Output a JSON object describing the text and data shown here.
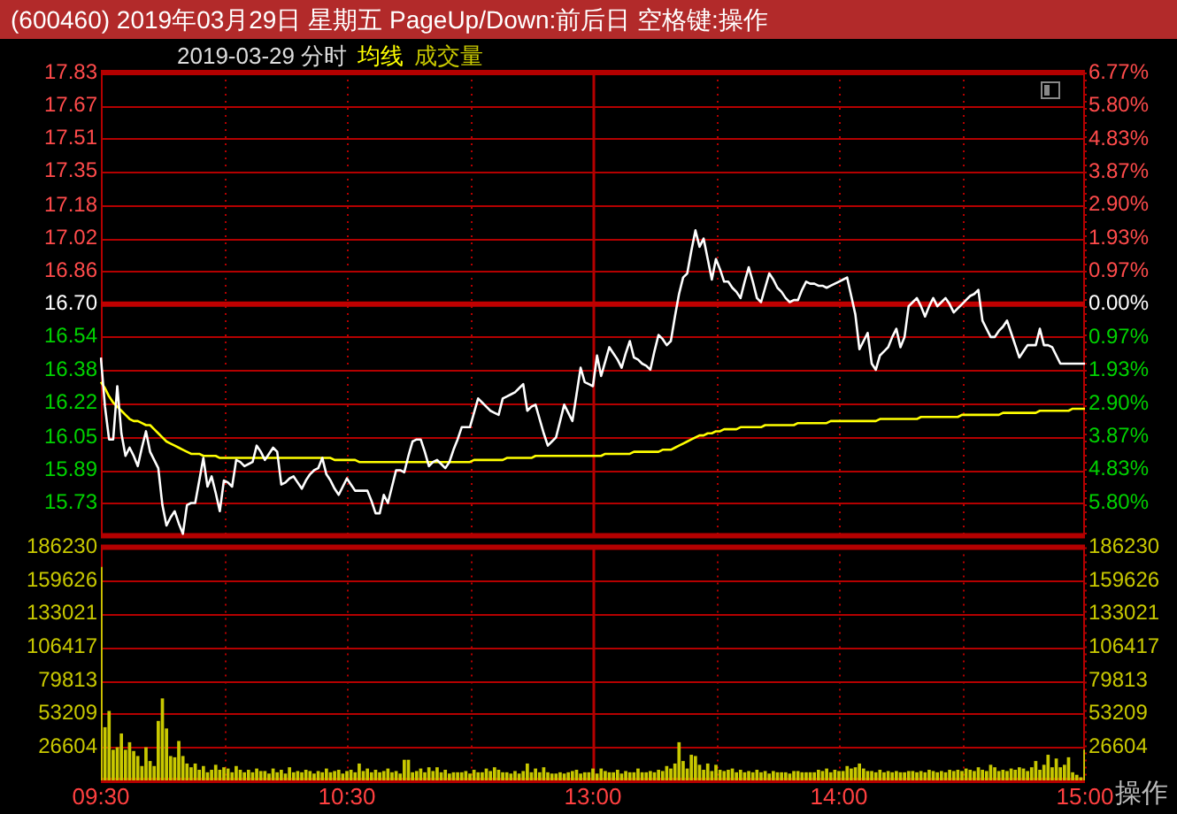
{
  "chart_data": [
    {
      "type": "line",
      "title": "(600460) 2019年03月29日 星期五 PageUp/Down:前后日 空格键:操作",
      "subtitle": "2019-03-29 分时",
      "grid": true,
      "legend": "top left",
      "marker": "none",
      "tick_labels": "y",
      "categories": [
        null,
        null,
        null,
        null,
        null,
        null,
        null,
        null,
        null,
        null,
        null,
        null,
        null,
        null,
        null,
        null,
        null,
        null,
        null,
        null,
        null,
        null,
        null,
        null,
        null,
        null,
        null,
        null,
        null,
        null,
        null,
        null,
        null,
        null,
        null,
        null,
        null,
        null,
        null,
        null,
        null,
        null,
        null,
        null,
        null,
        null,
        null,
        null,
        null,
        null,
        null,
        null,
        null,
        null,
        null,
        null,
        null,
        null,
        null,
        null,
        null,
        null,
        null,
        null,
        null,
        null,
        null,
        null,
        null,
        null,
        null,
        null,
        null,
        null,
        null,
        null,
        null,
        null,
        null,
        null,
        null,
        null,
        null,
        null,
        null,
        null,
        null,
        null,
        null,
        null,
        null,
        null,
        null,
        null,
        null,
        null,
        null,
        null,
        null,
        null,
        null,
        null,
        null,
        null,
        null,
        null,
        null,
        null,
        null,
        null,
        null,
        null,
        null,
        null,
        null,
        null,
        null,
        null,
        null,
        null,
        null,
        null,
        null,
        null,
        null,
        null,
        null,
        null,
        null,
        null,
        null,
        null,
        null,
        null,
        null,
        null,
        null,
        null,
        null,
        null,
        null,
        null,
        null,
        null,
        null,
        null,
        null,
        null,
        null,
        null,
        null,
        null,
        null,
        null,
        null,
        null,
        null,
        null,
        null,
        null,
        null,
        null,
        null,
        null,
        null,
        null,
        null,
        null,
        null,
        null,
        null,
        null,
        null,
        null,
        null,
        null,
        null,
        null,
        null,
        null,
        null,
        null,
        null,
        null,
        null,
        null,
        null,
        null,
        null,
        null,
        null,
        null,
        null,
        null,
        null,
        null,
        null,
        null,
        null,
        null,
        null,
        null,
        null,
        null,
        null,
        null,
        null,
        null,
        null,
        null,
        null,
        null,
        null,
        null,
        null,
        null,
        null,
        null,
        null,
        null,
        null,
        null,
        null,
        null,
        null,
        null,
        null,
        null,
        null,
        null,
        null,
        null,
        null,
        null,
        null,
        null,
        null,
        null,
        null,
        null,
        null
      ],
      "ylim": [
        15.57,
        17.83
      ],
      "yticks": [
        17.83,
        17.67,
        17.51,
        17.35,
        17.18,
        17.02,
        16.86,
        {
          "value": 16.7,
          "label": "16.70"
        },
        16.54,
        16.38,
        16.22,
        16.05,
        15.89,
        15.73
      ],
      "y2lim": [
        -6.77,
        6.77
      ],
      "y2ticks": [
        {
          "value": 6.77,
          "label": "6.77%"
        },
        {
          "value": 5.8,
          "label": "5.80%"
        },
        {
          "value": 4.83,
          "label": "4.83%"
        },
        {
          "value": 3.87,
          "label": "3.87%"
        },
        {
          "value": 2.9,
          "label": "2.90%"
        },
        {
          "value": 1.93,
          "label": "1.93%"
        },
        {
          "value": 0.97,
          "label": "0.97%"
        },
        {
          "value": 0,
          "label": "0.00%"
        },
        {
          "value": -0.97,
          "label": "0.97%"
        },
        {
          "value": -1.93,
          "label": "1.93%"
        },
        {
          "value": -2.9,
          "label": "2.90%"
        },
        {
          "value": -3.87,
          "label": "3.87%"
        },
        {
          "value": -4.83,
          "label": "4.83%"
        },
        {
          "value": -5.8,
          "label": "5.80%"
        }
      ],
      "ref_lines": [
        {
          "axis": "y",
          "value": 16.7,
          "color": "#c00000"
        }
      ],
      "series": [
        {
          "color": "#ffffff",
          "values": [
            16.44,
            16.2,
            16.04,
            16.04,
            16.3,
            16.07,
            15.96,
            16.0,
            15.96,
            15.91,
            16.0,
            16.08,
            15.98,
            15.94,
            15.9,
            15.72,
            15.62,
            15.66,
            15.69,
            15.63,
            15.58,
            15.72,
            15.73,
            15.73,
            15.84,
            15.95,
            15.81,
            15.86,
            15.78,
            15.69,
            15.84,
            15.83,
            15.81,
            15.94,
            15.93,
            15.91,
            15.92,
            15.93,
            16.01,
            15.98,
            15.94,
            15.97,
            16.0,
            15.98,
            15.82,
            15.83,
            15.85,
            15.86,
            15.83,
            15.8,
            15.84,
            15.87,
            15.89,
            15.9,
            15.95,
            15.87,
            15.84,
            15.8,
            15.77,
            15.81,
            15.85,
            15.82,
            15.79,
            15.79,
            15.79,
            15.79,
            15.74,
            15.68,
            15.68,
            15.77,
            15.73,
            15.81,
            15.89,
            15.89,
            15.88,
            15.96,
            16.03,
            16.04,
            16.04,
            15.98,
            15.91,
            15.93,
            15.94,
            15.92,
            15.9,
            15.93,
            15.99,
            16.04,
            16.1,
            16.1,
            16.1,
            16.17,
            16.24,
            16.22,
            16.2,
            16.18,
            16.17,
            16.16,
            16.24,
            16.25,
            16.26,
            16.27,
            16.29,
            16.31,
            16.18,
            16.2,
            16.21,
            16.14,
            16.07,
            16.01,
            16.03,
            16.05,
            16.13,
            16.21,
            16.17,
            16.13,
            16.26,
            16.39,
            16.32,
            16.31,
            16.3,
            16.45,
            16.35,
            16.42,
            16.49,
            16.46,
            16.43,
            16.39,
            16.46,
            16.52,
            16.44,
            16.43,
            16.41,
            16.4,
            16.38,
            16.47,
            16.55,
            16.53,
            16.5,
            16.52,
            16.64,
            16.75,
            16.83,
            16.85,
            16.96,
            17.06,
            16.98,
            17.02,
            16.92,
            16.82,
            16.92,
            16.87,
            16.81,
            16.81,
            16.78,
            16.76,
            16.73,
            16.81,
            16.88,
            16.81,
            16.73,
            16.71,
            16.78,
            16.85,
            16.82,
            16.78,
            16.76,
            16.73,
            16.71,
            16.72,
            16.72,
            16.77,
            16.81,
            16.8,
            16.8,
            16.79,
            16.79,
            16.78,
            16.79,
            16.8,
            16.81,
            16.82,
            16.83,
            16.74,
            16.65,
            16.48,
            16.52,
            16.56,
            16.41,
            16.38,
            16.45,
            16.47,
            16.49,
            16.54,
            16.58,
            16.49,
            16.54,
            16.69,
            16.71,
            16.73,
            16.69,
            16.64,
            16.69,
            16.73,
            16.69,
            16.71,
            16.73,
            16.7,
            16.66,
            16.68,
            16.7,
            16.72,
            16.74,
            16.75,
            16.77,
            16.62,
            16.58,
            16.54,
            16.54,
            16.57,
            16.59,
            16.62,
            16.56,
            16.5,
            16.44,
            16.47,
            16.5,
            16.5,
            16.5,
            16.58,
            16.5,
            16.5,
            16.49,
            16.45,
            16.41,
            16.41,
            16.41,
            16.41,
            16.41,
            16.41,
            16.41
          ]
        },
        {
          "name": "均线",
          "color": "#ffff00",
          "values": [
            16.32,
            16.29,
            16.25,
            16.22,
            16.2,
            16.18,
            16.16,
            16.14,
            16.13,
            16.13,
            16.12,
            16.11,
            16.11,
            16.09,
            16.07,
            16.05,
            16.03,
            16.02,
            16.01,
            16.0,
            15.99,
            15.98,
            15.97,
            15.97,
            15.97,
            15.96,
            15.96,
            15.96,
            15.96,
            15.95,
            15.95,
            15.95,
            15.95,
            15.95,
            15.95,
            15.95,
            15.95,
            15.95,
            15.95,
            15.95,
            15.95,
            15.95,
            15.95,
            15.95,
            15.95,
            15.95,
            15.95,
            15.95,
            15.95,
            15.95,
            15.95,
            15.95,
            15.95,
            15.95,
            15.95,
            15.95,
            15.95,
            15.94,
            15.94,
            15.94,
            15.94,
            15.94,
            15.94,
            15.93,
            15.93,
            15.93,
            15.93,
            15.93,
            15.93,
            15.93,
            15.93,
            15.93,
            15.93,
            15.93,
            15.93,
            15.93,
            15.93,
            15.93,
            15.93,
            15.93,
            15.93,
            15.93,
            15.93,
            15.93,
            15.93,
            15.93,
            15.93,
            15.93,
            15.93,
            15.93,
            15.93,
            15.94,
            15.94,
            15.94,
            15.94,
            15.94,
            15.94,
            15.94,
            15.94,
            15.95,
            15.95,
            15.95,
            15.95,
            15.95,
            15.95,
            15.95,
            15.96,
            15.96,
            15.96,
            15.96,
            15.96,
            15.96,
            15.96,
            15.96,
            15.96,
            15.96,
            15.96,
            15.96,
            15.96,
            15.96,
            15.96,
            15.96,
            15.96,
            15.97,
            15.97,
            15.97,
            15.97,
            15.97,
            15.97,
            15.97,
            15.98,
            15.98,
            15.98,
            15.98,
            15.98,
            15.98,
            15.98,
            15.99,
            15.99,
            15.99,
            16.0,
            16.01,
            16.02,
            16.03,
            16.04,
            16.05,
            16.06,
            16.06,
            16.07,
            16.07,
            16.08,
            16.08,
            16.09,
            16.09,
            16.09,
            16.09,
            16.1,
            16.1,
            16.1,
            16.1,
            16.1,
            16.1,
            16.11,
            16.11,
            16.11,
            16.11,
            16.11,
            16.11,
            16.11,
            16.11,
            16.12,
            16.12,
            16.12,
            16.12,
            16.12,
            16.12,
            16.12,
            16.12,
            16.13,
            16.13,
            16.13,
            16.13,
            16.13,
            16.13,
            16.13,
            16.13,
            16.13,
            16.13,
            16.13,
            16.13,
            16.14,
            16.14,
            16.14,
            16.14,
            16.14,
            16.14,
            16.14,
            16.14,
            16.14,
            16.14,
            16.15,
            16.15,
            16.15,
            16.15,
            16.15,
            16.15,
            16.15,
            16.15,
            16.15,
            16.15,
            16.16,
            16.16,
            16.16,
            16.16,
            16.16,
            16.16,
            16.16,
            16.16,
            16.16,
            16.16,
            16.17,
            16.17,
            16.17,
            16.17,
            16.17,
            16.17,
            16.17,
            16.17,
            16.17,
            16.18,
            16.18,
            16.18,
            16.18,
            16.18,
            16.18,
            16.18,
            16.18,
            16.19,
            16.19,
            16.19,
            16.19
          ]
        }
      ]
    },
    {
      "type": "bar",
      "grid": true,
      "legend": "top left",
      "annotations": [
        "操作"
      ],
      "categories": [
        "09:30",
        null,
        null,
        null,
        null,
        null,
        null,
        null,
        null,
        null,
        null,
        null,
        null,
        null,
        null,
        null,
        null,
        null,
        null,
        null,
        null,
        null,
        null,
        null,
        null,
        null,
        null,
        null,
        null,
        null,
        null,
        null,
        null,
        null,
        null,
        null,
        null,
        null,
        null,
        null,
        null,
        null,
        null,
        null,
        null,
        null,
        null,
        null,
        null,
        null,
        null,
        null,
        null,
        null,
        null,
        null,
        null,
        null,
        null,
        null,
        "10:30",
        null,
        null,
        null,
        null,
        null,
        null,
        null,
        null,
        null,
        null,
        null,
        null,
        null,
        null,
        null,
        null,
        null,
        null,
        null,
        null,
        null,
        null,
        null,
        null,
        null,
        null,
        null,
        null,
        null,
        null,
        null,
        null,
        null,
        null,
        null,
        null,
        null,
        null,
        null,
        null,
        null,
        null,
        null,
        null,
        null,
        null,
        null,
        null,
        null,
        null,
        null,
        null,
        null,
        null,
        null,
        null,
        null,
        null,
        null,
        "13:00",
        null,
        null,
        null,
        null,
        null,
        null,
        null,
        null,
        null,
        null,
        null,
        null,
        null,
        null,
        null,
        null,
        null,
        null,
        null,
        null,
        null,
        null,
        null,
        null,
        null,
        null,
        null,
        null,
        null,
        null,
        null,
        null,
        null,
        null,
        null,
        null,
        null,
        null,
        null,
        null,
        null,
        null,
        null,
        null,
        null,
        null,
        null,
        null,
        null,
        null,
        null,
        null,
        null,
        null,
        null,
        null,
        null,
        null,
        null,
        "14:00",
        null,
        null,
        null,
        null,
        null,
        null,
        null,
        null,
        null,
        null,
        null,
        null,
        null,
        null,
        null,
        null,
        null,
        null,
        null,
        null,
        null,
        null,
        null,
        null,
        null,
        null,
        null,
        null,
        null,
        null,
        null,
        null,
        null,
        null,
        null,
        null,
        null,
        null,
        null,
        null,
        null,
        null,
        null,
        null,
        null,
        null,
        null,
        null,
        null,
        null,
        null,
        null,
        null,
        null,
        null,
        null,
        null,
        null,
        null,
        "15:00"
      ],
      "ylim": [
        0,
        186230
      ],
      "yticks": [
        26604,
        53209,
        79813,
        106417,
        133021,
        159626,
        186230
      ],
      "y2lim": [
        0,
        186230
      ],
      "y2ticks": [
        26604,
        53209,
        79813,
        106417,
        133021,
        159626,
        186230
      ],
      "series": [
        {
          "name": "成交量",
          "color": "#c8c800",
          "values": [
            170000,
            42000,
            55000,
            24000,
            26000,
            37000,
            24000,
            30000,
            23000,
            19000,
            11000,
            26000,
            15000,
            11000,
            47000,
            65000,
            41000,
            19000,
            18000,
            31000,
            19000,
            13000,
            10000,
            13000,
            8000,
            11000,
            6000,
            8000,
            12000,
            8000,
            10000,
            9000,
            6000,
            11000,
            8000,
            6000,
            8000,
            6000,
            9000,
            7000,
            7000,
            5000,
            9000,
            6000,
            8000,
            5000,
            10000,
            6000,
            7000,
            6000,
            8000,
            7000,
            5000,
            7000,
            6000,
            9000,
            6000,
            7000,
            8000,
            5000,
            7000,
            8000,
            6000,
            13000,
            7000,
            9000,
            6000,
            8000,
            6000,
            7000,
            9000,
            6000,
            7000,
            5000,
            16000,
            16000,
            6000,
            7000,
            9000,
            6000,
            10000,
            7000,
            10000,
            6000,
            8000,
            5000,
            6000,
            6000,
            6000,
            7000,
            5000,
            8000,
            6000,
            6000,
            9000,
            7000,
            10000,
            8000,
            6000,
            6000,
            5000,
            7000,
            5000,
            7000,
            13000,
            6000,
            9000,
            6000,
            10000,
            6000,
            5000,
            5000,
            6000,
            5000,
            6000,
            7000,
            8000,
            5000,
            6000,
            6000,
            9000,
            5000,
            9000,
            7000,
            6000,
            6000,
            8000,
            5000,
            7000,
            6000,
            6000,
            9000,
            6000,
            6000,
            7000,
            6000,
            8000,
            7000,
            11000,
            9000,
            13000,
            30000,
            15000,
            9000,
            20000,
            19000,
            12000,
            8000,
            13000,
            7000,
            12000,
            8000,
            7000,
            8000,
            9000,
            6000,
            8000,
            6000,
            7000,
            6000,
            8000,
            6000,
            7000,
            5000,
            7000,
            6000,
            6000,
            6000,
            5000,
            7000,
            7000,
            6000,
            6000,
            6000,
            6000,
            8000,
            7000,
            9000,
            6000,
            8000,
            7000,
            7000,
            11000,
            9000,
            10000,
            13000,
            9000,
            7000,
            7000,
            6000,
            8000,
            6000,
            7000,
            6000,
            7000,
            6000,
            6000,
            7000,
            7000,
            6000,
            7000,
            6000,
            8000,
            7000,
            6000,
            7000,
            6000,
            8000,
            7000,
            8000,
            7000,
            9000,
            8000,
            7000,
            10000,
            8000,
            7000,
            12000,
            10000,
            7000,
            8000,
            7000,
            9000,
            8000,
            10000,
            9000,
            7000,
            10000,
            15000,
            8000,
            12000,
            20000,
            10000,
            17000,
            10000,
            12000,
            18000,
            6000,
            4000,
            2000,
            24000
          ]
        }
      ]
    }
  ]
}
